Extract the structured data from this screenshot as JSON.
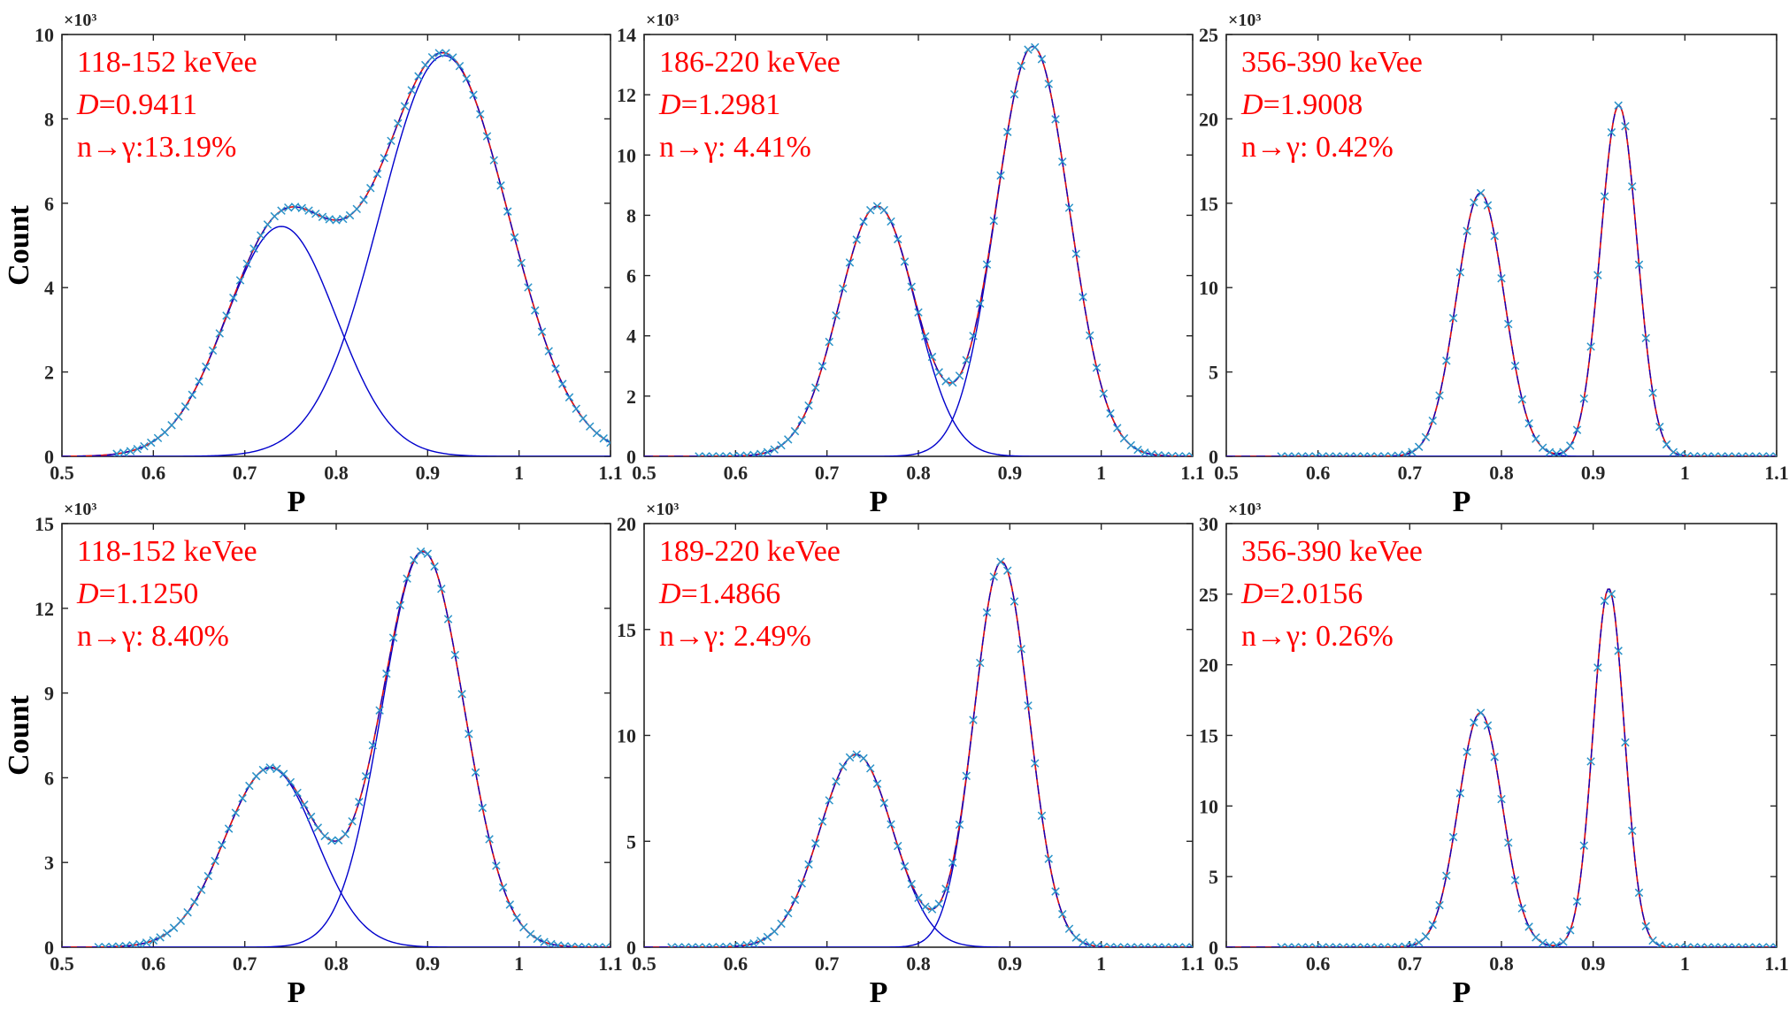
{
  "figure": {
    "colors": {
      "annotation": "#ff0000",
      "component_fit": "#0000cc",
      "total_fit": "#e01010",
      "data_marker": "#2a93c9",
      "axis": "#262626"
    }
  },
  "chart_data": [
    {
      "type": "line",
      "row": 1,
      "col": 1,
      "xlabel": "P",
      "ylabel": "Count",
      "scale_label": "×10³",
      "xlim": [
        0.5,
        1.1
      ],
      "ylim": [
        0,
        10
      ],
      "xticks": [
        "0.5",
        "0.6",
        "0.7",
        "0.8",
        "0.9",
        "1",
        "1.1"
      ],
      "yticks": [
        "0",
        "2",
        "4",
        "6",
        "8",
        "10"
      ],
      "annotations": {
        "energy": "118-152 keVee",
        "d_value": "0.9411",
        "ratio": "n→γ:13.19%"
      },
      "components": [
        {
          "name": "peak 1",
          "mu": 0.74,
          "sigma": 0.06,
          "amp": 5.45
        },
        {
          "name": "peak 2",
          "mu": 0.918,
          "sigma": 0.07,
          "amp": 9.5
        }
      ],
      "data_x_range": [
        0.56,
        1.1
      ]
    },
    {
      "type": "line",
      "row": 1,
      "col": 2,
      "xlabel": "P",
      "ylabel": "",
      "scale_label": "×10³",
      "xlim": [
        0.5,
        1.1
      ],
      "ylim": [
        0,
        14
      ],
      "xticks": [
        "0.5",
        "0.6",
        "0.7",
        "0.8",
        "0.9",
        "1",
        "1.1"
      ],
      "yticks": [
        "0",
        "2",
        "4",
        "6",
        "8",
        "10",
        "12",
        "14"
      ],
      "annotations": {
        "energy": "186-220 keVee",
        "d_value": "1.2981",
        "ratio": "n→γ: 4.41%"
      },
      "components": [
        {
          "name": "peak 1",
          "mu": 0.755,
          "sigma": 0.042,
          "amp": 8.3
        },
        {
          "name": "peak 2",
          "mu": 0.925,
          "sigma": 0.04,
          "amp": 13.6
        }
      ],
      "data_x_range": [
        0.56,
        1.1
      ]
    },
    {
      "type": "line",
      "row": 1,
      "col": 3,
      "xlabel": "P",
      "ylabel": "",
      "scale_label": "×10³",
      "xlim": [
        0.5,
        1.1
      ],
      "ylim": [
        0,
        25
      ],
      "xticks": [
        "0.5",
        "0.6",
        "0.7",
        "0.8",
        "0.9",
        "1",
        "1.1"
      ],
      "yticks": [
        "0",
        "5",
        "10",
        "15",
        "20",
        "25"
      ],
      "annotations": {
        "energy": "356-390 keVee",
        "d_value": "1.9008",
        "ratio": "n→γ: 0.42%"
      },
      "components": [
        {
          "name": "peak 1",
          "mu": 0.777,
          "sigma": 0.026,
          "amp": 15.6
        },
        {
          "name": "peak 2",
          "mu": 0.928,
          "sigma": 0.02,
          "amp": 20.8
        }
      ],
      "data_x_range": [
        0.56,
        1.1
      ]
    },
    {
      "type": "line",
      "row": 2,
      "col": 1,
      "xlabel": "P",
      "ylabel": "Count",
      "scale_label": "×10³",
      "xlim": [
        0.5,
        1.1
      ],
      "ylim": [
        0,
        15
      ],
      "xticks": [
        "0.5",
        "0.6",
        "0.7",
        "0.8",
        "0.9",
        "1",
        "1.1"
      ],
      "yticks": [
        "0",
        "3",
        "6",
        "9",
        "12",
        "15"
      ],
      "annotations": {
        "energy": "118-152 keVee",
        "d_value": "1.1250",
        "ratio": "n→γ: 8.40%"
      },
      "components": [
        {
          "name": "peak 1",
          "mu": 0.728,
          "sigma": 0.05,
          "amp": 6.35
        },
        {
          "name": "peak 2",
          "mu": 0.895,
          "sigma": 0.045,
          "amp": 14.0
        }
      ],
      "data_x_range": [
        0.54,
        1.1
      ]
    },
    {
      "type": "line",
      "row": 2,
      "col": 2,
      "xlabel": "P",
      "ylabel": "",
      "scale_label": "×10³",
      "xlim": [
        0.5,
        1.1
      ],
      "ylim": [
        0,
        20
      ],
      "xticks": [
        "0.5",
        "0.6",
        "0.7",
        "0.8",
        "0.9",
        "1",
        "1.1"
      ],
      "yticks": [
        "0",
        "5",
        "10",
        "15",
        "20"
      ],
      "annotations": {
        "energy": "189-220 keVee",
        "d_value": "1.4866",
        "ratio": "n→γ: 2.49%"
      },
      "components": [
        {
          "name": "peak 1",
          "mu": 0.732,
          "sigma": 0.04,
          "amp": 9.1
        },
        {
          "name": "peak 2",
          "mu": 0.891,
          "sigma": 0.03,
          "amp": 18.2
        }
      ],
      "data_x_range": [
        0.53,
        1.1
      ]
    },
    {
      "type": "line",
      "row": 2,
      "col": 3,
      "xlabel": "P",
      "ylabel": "",
      "scale_label": "×10³",
      "xlim": [
        0.5,
        1.1
      ],
      "ylim": [
        0,
        30
      ],
      "xticks": [
        "0.5",
        "0.6",
        "0.7",
        "0.8",
        "0.9",
        "1",
        "1.1"
      ],
      "yticks": [
        "0",
        "5",
        "10",
        "15",
        "20",
        "25",
        "30"
      ],
      "annotations": {
        "energy": "356-390 keVee",
        "d_value": "2.0156",
        "ratio": "n→γ: 0.26%"
      },
      "components": [
        {
          "name": "peak 1",
          "mu": 0.777,
          "sigma": 0.024,
          "amp": 16.6
        },
        {
          "name": "peak 2",
          "mu": 0.917,
          "sigma": 0.017,
          "amp": 25.4
        }
      ],
      "data_x_range": [
        0.56,
        1.1
      ]
    }
  ]
}
